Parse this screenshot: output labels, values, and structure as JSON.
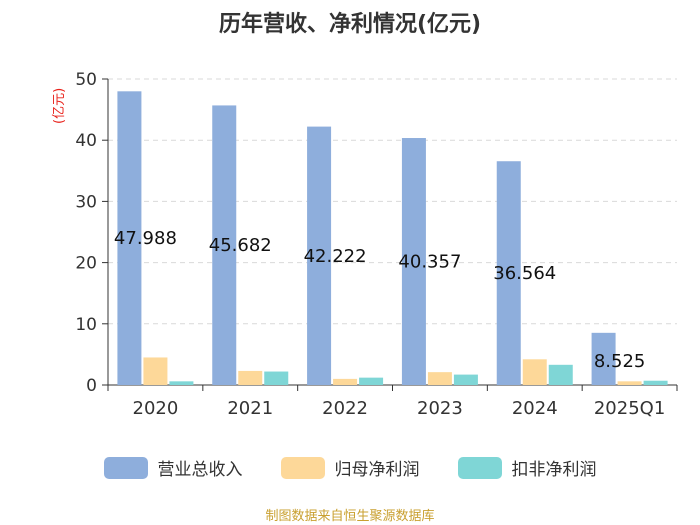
{
  "chart_data": {
    "type": "bar",
    "title": "历年营收、净利情况(亿元)",
    "ylabel": "(亿元)",
    "categories": [
      "2020",
      "2021",
      "2022",
      "2023",
      "2024",
      "2025Q1"
    ],
    "ylim": [
      0,
      50
    ],
    "yticks": [
      "0",
      "10",
      "20",
      "30",
      "40",
      "50"
    ],
    "series": [
      {
        "name": "营业总收入",
        "color": "#8eaedc",
        "values": [
          47.988,
          45.682,
          42.222,
          40.357,
          36.564,
          8.525
        ],
        "labels": [
          "47.988",
          "45.682",
          "42.222",
          "40.357",
          "36.564",
          "8.525"
        ]
      },
      {
        "name": "归母净利润",
        "color": "#fdd899",
        "values": [
          4.5,
          2.3,
          1.0,
          2.1,
          4.2,
          0.6
        ]
      },
      {
        "name": "扣非净利润",
        "color": "#7fd6d6",
        "values": [
          0.6,
          2.2,
          1.2,
          1.7,
          3.3,
          0.7
        ]
      }
    ],
    "grid": true,
    "legend_position": "bottom"
  },
  "footer": {
    "source": "制图数据来自恒生聚源数据库"
  }
}
